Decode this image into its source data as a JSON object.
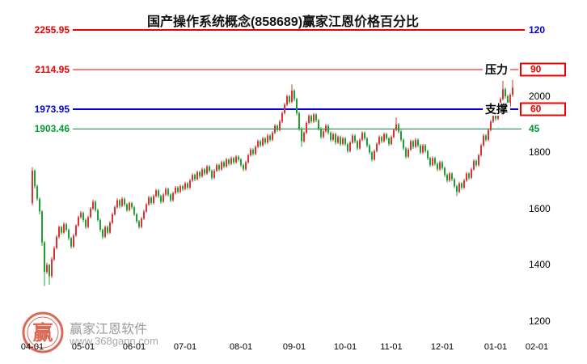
{
  "title": "国产操作系统概念(858689)赢家江恩价格百分比",
  "watermark": {
    "brand": "赢家江恩软件",
    "url": "www.368gann.com",
    "logo_text": "赢"
  },
  "chart_data": {
    "type": "candlestick",
    "title": "国产操作系统概念(858689)赢家江恩价格百分比",
    "grid": "off",
    "colors": {
      "up": "#e03030",
      "down": "#1fa030",
      "background": "#ffffff"
    },
    "y_axis": {
      "min": 1200,
      "max": 2360,
      "ticks": [
        2000,
        1800,
        1600,
        1400,
        1200
      ]
    },
    "x_ticks": [
      {
        "label": "04-01",
        "index": 0
      },
      {
        "label": "05-01",
        "index": 21
      },
      {
        "label": "06-01",
        "index": 42
      },
      {
        "label": "07-01",
        "index": 63
      },
      {
        "label": "08-01",
        "index": 86
      },
      {
        "label": "09-01",
        "index": 108
      },
      {
        "label": "10-01",
        "index": 129
      },
      {
        "label": "11-01",
        "index": 148
      },
      {
        "label": "12-01",
        "index": 169
      },
      {
        "label": "01-01",
        "index": 191
      },
      {
        "label": "02-01",
        "index": 208
      }
    ],
    "gann_levels": [
      {
        "value": 2255.95,
        "price_label": "2255.95",
        "pct_label": "120",
        "annotation": "",
        "color": "#ec0000",
        "label_color": "#0000dd",
        "boxed": false
      },
      {
        "value": 2114.95,
        "price_label": "2114.95",
        "pct_label": "90",
        "annotation": "压力",
        "color": "#ec0000",
        "label_color": "#ec0000",
        "boxed": true
      },
      {
        "value": 1973.95,
        "price_label": "1973.95",
        "pct_label": "60",
        "annotation": "支撑",
        "color": "#0000dd",
        "label_color": "#ec0000",
        "boxed": true
      },
      {
        "value": 1903.46,
        "price_label": "1903.46",
        "pct_label": "45",
        "annotation": "",
        "color": "#009933",
        "label_color": "#009933",
        "boxed": false
      }
    ],
    "candles": [
      [
        1640,
        1768,
        1632,
        1755
      ],
      [
        1755,
        1760,
        1692,
        1700
      ],
      [
        1700,
        1706,
        1648,
        1655
      ],
      [
        1655,
        1660,
        1600,
        1610
      ],
      [
        1610,
        1615,
        1488,
        1500
      ],
      [
        1500,
        1505,
        1345,
        1395
      ],
      [
        1395,
        1428,
        1388,
        1420
      ],
      [
        1420,
        1424,
        1350,
        1380
      ],
      [
        1380,
        1448,
        1374,
        1440
      ],
      [
        1440,
        1487,
        1434,
        1480
      ],
      [
        1480,
        1526,
        1475,
        1520
      ],
      [
        1520,
        1560,
        1514,
        1555
      ],
      [
        1555,
        1559,
        1528,
        1535
      ],
      [
        1535,
        1572,
        1530,
        1565
      ],
      [
        1565,
        1570,
        1538,
        1545
      ],
      [
        1545,
        1550,
        1508,
        1515
      ],
      [
        1515,
        1520,
        1478,
        1485
      ],
      [
        1485,
        1530,
        1480,
        1525
      ],
      [
        1525,
        1565,
        1520,
        1560
      ],
      [
        1560,
        1596,
        1555,
        1590
      ],
      [
        1590,
        1612,
        1584,
        1605
      ],
      [
        1605,
        1610,
        1572,
        1580
      ],
      [
        1580,
        1585,
        1548,
        1555
      ],
      [
        1555,
        1596,
        1550,
        1590
      ],
      [
        1590,
        1626,
        1585,
        1620
      ],
      [
        1620,
        1652,
        1615,
        1645
      ],
      [
        1645,
        1650,
        1608,
        1615
      ],
      [
        1615,
        1620,
        1574,
        1580
      ],
      [
        1580,
        1585,
        1538,
        1545
      ],
      [
        1545,
        1550,
        1512,
        1520
      ],
      [
        1520,
        1560,
        1515,
        1555
      ],
      [
        1555,
        1560,
        1528,
        1535
      ],
      [
        1535,
        1576,
        1530,
        1570
      ],
      [
        1570,
        1606,
        1565,
        1600
      ],
      [
        1600,
        1631,
        1595,
        1625
      ],
      [
        1625,
        1657,
        1620,
        1650
      ],
      [
        1650,
        1655,
        1622,
        1630
      ],
      [
        1630,
        1662,
        1625,
        1655
      ],
      [
        1655,
        1660,
        1628,
        1635
      ],
      [
        1635,
        1640,
        1608,
        1615
      ],
      [
        1615,
        1646,
        1610,
        1640
      ],
      [
        1640,
        1645,
        1618,
        1625
      ],
      [
        1625,
        1630,
        1594,
        1600
      ],
      [
        1600,
        1605,
        1568,
        1575
      ],
      [
        1575,
        1580,
        1548,
        1555
      ],
      [
        1555,
        1591,
        1550,
        1585
      ],
      [
        1585,
        1616,
        1580,
        1610
      ],
      [
        1610,
        1641,
        1605,
        1635
      ],
      [
        1635,
        1666,
        1630,
        1660
      ],
      [
        1660,
        1665,
        1634,
        1640
      ],
      [
        1640,
        1671,
        1635,
        1665
      ],
      [
        1665,
        1691,
        1660,
        1685
      ],
      [
        1685,
        1690,
        1658,
        1665
      ],
      [
        1665,
        1670,
        1638,
        1645
      ],
      [
        1645,
        1676,
        1640,
        1670
      ],
      [
        1670,
        1696,
        1665,
        1690
      ],
      [
        1690,
        1695,
        1663,
        1670
      ],
      [
        1670,
        1675,
        1643,
        1650
      ],
      [
        1650,
        1681,
        1645,
        1675
      ],
      [
        1675,
        1701,
        1670,
        1695
      ],
      [
        1695,
        1700,
        1674,
        1680
      ],
      [
        1680,
        1706,
        1675,
        1700
      ],
      [
        1700,
        1705,
        1683,
        1690
      ],
      [
        1690,
        1716,
        1685,
        1710
      ],
      [
        1710,
        1715,
        1688,
        1695
      ],
      [
        1695,
        1726,
        1690,
        1720
      ],
      [
        1720,
        1746,
        1715,
        1740
      ],
      [
        1740,
        1745,
        1718,
        1725
      ],
      [
        1725,
        1756,
        1720,
        1750
      ],
      [
        1750,
        1755,
        1728,
        1735
      ],
      [
        1735,
        1766,
        1730,
        1760
      ],
      [
        1760,
        1765,
        1738,
        1745
      ],
      [
        1745,
        1776,
        1740,
        1770
      ],
      [
        1770,
        1775,
        1748,
        1755
      ],
      [
        1755,
        1760,
        1723,
        1730
      ],
      [
        1730,
        1761,
        1725,
        1755
      ],
      [
        1755,
        1781,
        1750,
        1775
      ],
      [
        1775,
        1780,
        1753,
        1760
      ],
      [
        1760,
        1791,
        1755,
        1785
      ],
      [
        1785,
        1790,
        1763,
        1770
      ],
      [
        1770,
        1801,
        1765,
        1795
      ],
      [
        1795,
        1800,
        1773,
        1780
      ],
      [
        1780,
        1806,
        1775,
        1800
      ],
      [
        1800,
        1805,
        1778,
        1785
      ],
      [
        1785,
        1811,
        1780,
        1805
      ],
      [
        1805,
        1810,
        1788,
        1795
      ],
      [
        1795,
        1800,
        1768,
        1775
      ],
      [
        1775,
        1780,
        1753,
        1760
      ],
      [
        1760,
        1791,
        1755,
        1785
      ],
      [
        1785,
        1816,
        1780,
        1810
      ],
      [
        1810,
        1836,
        1805,
        1830
      ],
      [
        1830,
        1835,
        1808,
        1815
      ],
      [
        1815,
        1846,
        1810,
        1840
      ],
      [
        1840,
        1866,
        1835,
        1860
      ],
      [
        1860,
        1865,
        1838,
        1845
      ],
      [
        1845,
        1876,
        1840,
        1870
      ],
      [
        1870,
        1875,
        1848,
        1855
      ],
      [
        1855,
        1886,
        1850,
        1880
      ],
      [
        1880,
        1885,
        1858,
        1865
      ],
      [
        1865,
        1896,
        1860,
        1890
      ],
      [
        1890,
        1921,
        1885,
        1915
      ],
      [
        1915,
        1920,
        1893,
        1900
      ],
      [
        1900,
        1936,
        1895,
        1930
      ],
      [
        1930,
        1966,
        1925,
        1960
      ],
      [
        1960,
        1996,
        1955,
        1990
      ],
      [
        1990,
        2026,
        1985,
        2020
      ],
      [
        2020,
        2025,
        1993,
        2000
      ],
      [
        2000,
        2062,
        1995,
        2040
      ],
      [
        2040,
        2045,
        2002,
        2010
      ],
      [
        2010,
        2015,
        1952,
        1960
      ],
      [
        1960,
        1965,
        1897,
        1905
      ],
      [
        1905,
        1910,
        1840,
        1860
      ],
      [
        1860,
        1896,
        1855,
        1890
      ],
      [
        1890,
        1931,
        1885,
        1925
      ],
      [
        1925,
        1956,
        1920,
        1950
      ],
      [
        1950,
        1955,
        1923,
        1930
      ],
      [
        1930,
        1961,
        1925,
        1955
      ],
      [
        1955,
        1960,
        1928,
        1935
      ],
      [
        1935,
        1940,
        1898,
        1905
      ],
      [
        1905,
        1910,
        1868,
        1875
      ],
      [
        1875,
        1901,
        1870,
        1895
      ],
      [
        1895,
        1921,
        1890,
        1915
      ],
      [
        1915,
        1920,
        1883,
        1890
      ],
      [
        1890,
        1895,
        1858,
        1865
      ],
      [
        1865,
        1891,
        1860,
        1885
      ],
      [
        1885,
        1890,
        1848,
        1855
      ],
      [
        1855,
        1881,
        1850,
        1875
      ],
      [
        1875,
        1880,
        1843,
        1850
      ],
      [
        1850,
        1876,
        1845,
        1870
      ],
      [
        1870,
        1875,
        1843,
        1850
      ],
      [
        1850,
        1855,
        1818,
        1825
      ],
      [
        1825,
        1861,
        1820,
        1855
      ],
      [
        1855,
        1886,
        1850,
        1880
      ],
      [
        1880,
        1885,
        1853,
        1860
      ],
      [
        1860,
        1865,
        1828,
        1835
      ],
      [
        1835,
        1871,
        1830,
        1865
      ],
      [
        1865,
        1896,
        1860,
        1890
      ],
      [
        1890,
        1895,
        1863,
        1870
      ],
      [
        1870,
        1875,
        1838,
        1845
      ],
      [
        1845,
        1850,
        1813,
        1820
      ],
      [
        1820,
        1825,
        1788,
        1795
      ],
      [
        1795,
        1831,
        1790,
        1825
      ],
      [
        1825,
        1856,
        1820,
        1850
      ],
      [
        1850,
        1881,
        1845,
        1875
      ],
      [
        1875,
        1880,
        1853,
        1860
      ],
      [
        1860,
        1891,
        1855,
        1885
      ],
      [
        1885,
        1890,
        1863,
        1870
      ],
      [
        1870,
        1875,
        1843,
        1850
      ],
      [
        1850,
        1881,
        1845,
        1875
      ],
      [
        1875,
        1906,
        1870,
        1900
      ],
      [
        1900,
        1944,
        1895,
        1920
      ],
      [
        1920,
        1925,
        1888,
        1895
      ],
      [
        1895,
        1900,
        1858,
        1865
      ],
      [
        1865,
        1870,
        1828,
        1835
      ],
      [
        1835,
        1840,
        1798,
        1805
      ],
      [
        1805,
        1836,
        1800,
        1830
      ],
      [
        1830,
        1866,
        1825,
        1860
      ],
      [
        1860,
        1865,
        1833,
        1840
      ],
      [
        1840,
        1871,
        1835,
        1865
      ],
      [
        1865,
        1870,
        1838,
        1845
      ],
      [
        1845,
        1850,
        1813,
        1820
      ],
      [
        1820,
        1851,
        1815,
        1845
      ],
      [
        1845,
        1850,
        1818,
        1825
      ],
      [
        1825,
        1830,
        1793,
        1800
      ],
      [
        1800,
        1805,
        1768,
        1775
      ],
      [
        1775,
        1806,
        1770,
        1800
      ],
      [
        1800,
        1805,
        1773,
        1780
      ],
      [
        1780,
        1785,
        1753,
        1760
      ],
      [
        1760,
        1791,
        1755,
        1785
      ],
      [
        1785,
        1790,
        1758,
        1765
      ],
      [
        1765,
        1770,
        1733,
        1740
      ],
      [
        1740,
        1745,
        1713,
        1720
      ],
      [
        1720,
        1751,
        1715,
        1745
      ],
      [
        1745,
        1750,
        1718,
        1725
      ],
      [
        1725,
        1730,
        1693,
        1700
      ],
      [
        1700,
        1705,
        1665,
        1680
      ],
      [
        1680,
        1716,
        1675,
        1710
      ],
      [
        1710,
        1715,
        1688,
        1695
      ],
      [
        1695,
        1726,
        1690,
        1720
      ],
      [
        1720,
        1751,
        1715,
        1745
      ],
      [
        1745,
        1750,
        1723,
        1730
      ],
      [
        1730,
        1766,
        1725,
        1760
      ],
      [
        1760,
        1796,
        1755,
        1790
      ],
      [
        1790,
        1795,
        1768,
        1775
      ],
      [
        1775,
        1816,
        1770,
        1810
      ],
      [
        1810,
        1851,
        1805,
        1845
      ],
      [
        1845,
        1886,
        1840,
        1880
      ],
      [
        1880,
        1885,
        1858,
        1865
      ],
      [
        1865,
        1906,
        1860,
        1900
      ],
      [
        1900,
        1936,
        1895,
        1930
      ],
      [
        1930,
        1966,
        1925,
        1960
      ],
      [
        1960,
        1965,
        1932,
        1940
      ],
      [
        1940,
        1981,
        1935,
        1975
      ],
      [
        1975,
        2016,
        1970,
        2010
      ],
      [
        2010,
        2075,
        2005,
        2045
      ],
      [
        2045,
        2050,
        2012,
        2020
      ],
      [
        2020,
        2025,
        1977,
        1985
      ],
      [
        1985,
        2031,
        1980,
        2025
      ],
      [
        2025,
        2078,
        2018,
        2050
      ]
    ]
  }
}
